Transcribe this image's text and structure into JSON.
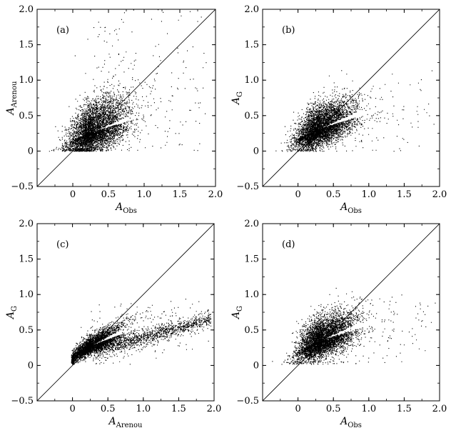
{
  "chart_data": [
    {
      "panel_label": "(a)",
      "type": "scatter",
      "xlabel": "A",
      "xlabel_sub": "Obs",
      "ylabel": "A",
      "ylabel_sub": "Arenou",
      "xlim": [
        -0.5,
        2.0
      ],
      "ylim": [
        -0.5,
        2.0
      ],
      "xticks": [
        "0",
        "0.5",
        "1.0",
        "1.5",
        "2.0"
      ],
      "yticks": [
        "−0.5",
        "0",
        "0.5",
        "1.0",
        "1.5",
        "2.0"
      ],
      "reference_line": "y = x",
      "point_count": 5000,
      "distribution": {
        "x_center": 0.28,
        "x_spread": 0.22,
        "y_center": 0.28,
        "y_spread": 0.2,
        "correlation": 0.45,
        "y_floor": 0.0,
        "outlier_fraction": 0.05,
        "outlier_y_max": 2.0,
        "outlier_x_max": 1.9
      }
    },
    {
      "panel_label": "(b)",
      "type": "scatter",
      "xlabel": "A",
      "xlabel_sub": "Obs",
      "ylabel": "A",
      "ylabel_sub": "G",
      "xlim": [
        -0.5,
        2.0
      ],
      "ylim": [
        -0.5,
        2.0
      ],
      "xticks": [
        "0",
        "0.5",
        "1.0",
        "1.5",
        "2.0"
      ],
      "yticks": [
        "−0.5",
        "0",
        "0.5",
        "1.0",
        "1.5",
        "2.0"
      ],
      "reference_line": "y = x",
      "point_count": 5000,
      "distribution": {
        "x_center": 0.3,
        "x_spread": 0.22,
        "y_center": 0.32,
        "y_spread": 0.17,
        "correlation": 0.55,
        "y_floor": 0.0,
        "outlier_fraction": 0.04,
        "outlier_y_max": 1.65,
        "outlier_x_max": 1.95
      }
    },
    {
      "panel_label": "(c)",
      "type": "scatter",
      "xlabel": "A",
      "xlabel_sub": "Arenou",
      "ylabel": "A",
      "ylabel_sub": "G",
      "xlim": [
        -0.5,
        2.0
      ],
      "ylim": [
        -0.5,
        2.0
      ],
      "xticks": [
        "0",
        "0.5",
        "1.0",
        "1.5",
        "2.0"
      ],
      "yticks": [
        "−0.5",
        "0",
        "0.5",
        "1.0",
        "1.5",
        "2.0"
      ],
      "reference_line": "y = x",
      "point_count": 5000,
      "distribution": {
        "x_center": 0.25,
        "x_spread": 0.2,
        "y_center": 0.28,
        "y_spread": 0.12,
        "correlation": 0.85,
        "y_floor": 0.02,
        "outlier_fraction": 0.08,
        "outlier_y_max": 0.95,
        "outlier_x_max": 1.95
      }
    },
    {
      "panel_label": "(d)",
      "type": "scatter",
      "xlabel": "A",
      "xlabel_sub": "Obs",
      "ylabel": "A",
      "ylabel_sub": "G",
      "xlim": [
        -0.5,
        2.0
      ],
      "ylim": [
        -0.5,
        2.0
      ],
      "xticks": [
        "0",
        "0.5",
        "1.0",
        "1.5",
        "2.0"
      ],
      "yticks": [
        "−0.5",
        "0",
        "0.5",
        "1.0",
        "1.5",
        "2.0"
      ],
      "reference_line": "y = x",
      "point_count": 5000,
      "distribution": {
        "x_center": 0.32,
        "x_spread": 0.22,
        "y_center": 0.36,
        "y_spread": 0.17,
        "correlation": 0.55,
        "y_floor": 0.02,
        "outlier_fraction": 0.04,
        "outlier_y_max": 1.0,
        "outlier_x_max": 1.95
      }
    }
  ]
}
